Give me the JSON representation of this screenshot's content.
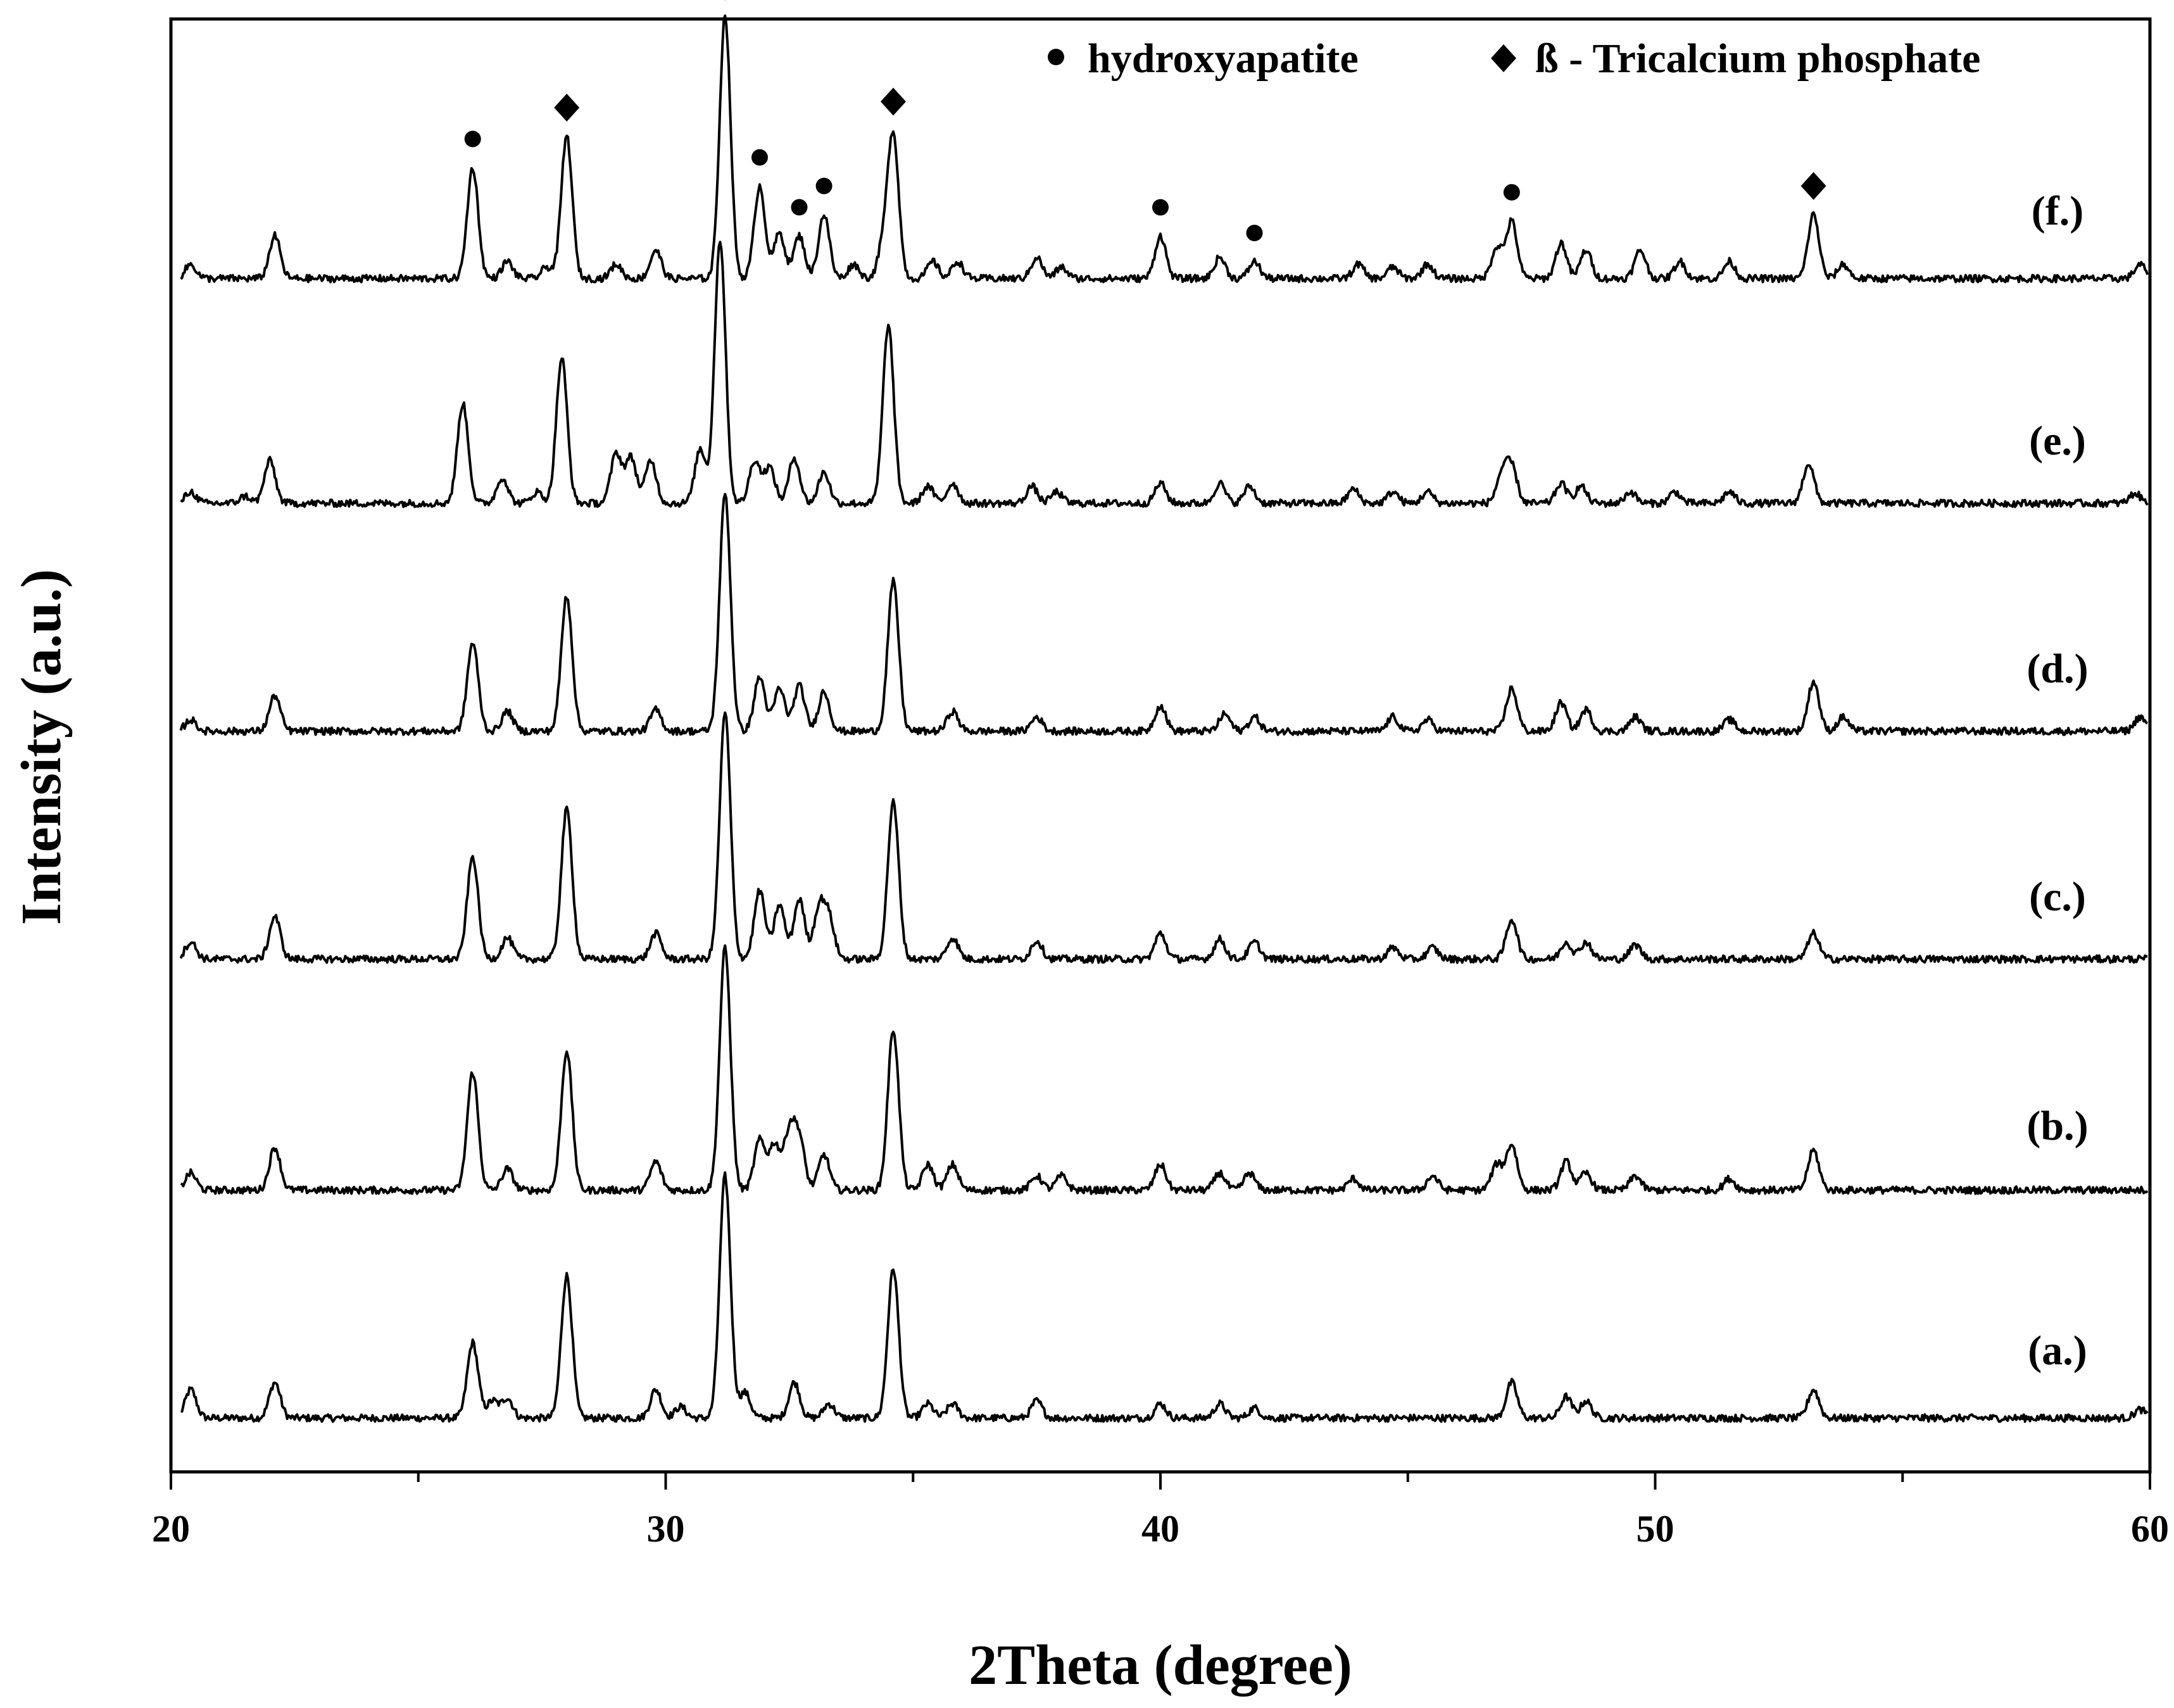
{
  "chart_data": {
    "type": "line",
    "title": "",
    "xlabel": "2Theta (degree)",
    "ylabel": "Intensity (a.u.)",
    "xlim": [
      20,
      60
    ],
    "x_ticks": [
      "20",
      "30",
      "40",
      "50",
      "60"
    ],
    "y_ticks": "none",
    "grid": false,
    "legend_position": "top-right",
    "legend": {
      "hydroxyapatite": {
        "marker": "circle",
        "label": "hydroxyapatite"
      },
      "tcp": {
        "marker": "diamond",
        "label": "ß - Tricalcium phosphate"
      }
    },
    "peak_width_deg": 0.11,
    "series": [
      {
        "label": "(a.)",
        "baseline": 0.25,
        "peaks": [
          [
            20.4,
            0.2
          ],
          [
            22.1,
            0.25
          ],
          [
            26.1,
            0.53
          ],
          [
            26.5,
            0.12
          ],
          [
            26.8,
            0.14
          ],
          [
            28.0,
            1.0
          ],
          [
            29.8,
            0.2
          ],
          [
            30.3,
            0.08
          ],
          [
            31.2,
            1.7
          ],
          [
            31.6,
            0.18
          ],
          [
            32.6,
            0.25
          ],
          [
            33.3,
            0.1
          ],
          [
            34.6,
            1.05
          ],
          [
            35.3,
            0.1
          ],
          [
            35.8,
            0.1
          ],
          [
            37.5,
            0.12
          ],
          [
            40.0,
            0.1
          ],
          [
            41.2,
            0.1
          ],
          [
            41.9,
            0.07
          ],
          [
            47.1,
            0.25
          ],
          [
            48.2,
            0.15
          ],
          [
            48.6,
            0.12
          ],
          [
            53.2,
            0.2
          ],
          [
            59.8,
            0.06
          ]
        ]
      },
      {
        "label": "(b.)",
        "baseline": 0.25,
        "peaks": [
          [
            20.4,
            0.12
          ],
          [
            22.1,
            0.3
          ],
          [
            26.1,
            0.83
          ],
          [
            26.8,
            0.15
          ],
          [
            28.0,
            0.98
          ],
          [
            29.8,
            0.2
          ],
          [
            31.2,
            1.7
          ],
          [
            31.9,
            0.35
          ],
          [
            32.2,
            0.32
          ],
          [
            32.5,
            0.4
          ],
          [
            32.7,
            0.35
          ],
          [
            33.2,
            0.25
          ],
          [
            34.6,
            1.13
          ],
          [
            35.3,
            0.18
          ],
          [
            35.8,
            0.18
          ],
          [
            37.5,
            0.1
          ],
          [
            38.0,
            0.1
          ],
          [
            40.0,
            0.18
          ],
          [
            41.2,
            0.12
          ],
          [
            41.8,
            0.12
          ],
          [
            43.9,
            0.08
          ],
          [
            45.5,
            0.1
          ],
          [
            47.1,
            0.32
          ],
          [
            46.8,
            0.18
          ],
          [
            48.2,
            0.2
          ],
          [
            48.6,
            0.12
          ],
          [
            49.6,
            0.1
          ],
          [
            51.5,
            0.08
          ],
          [
            53.2,
            0.28
          ]
        ]
      },
      {
        "label": "(c.)",
        "baseline": 0.25,
        "peaks": [
          [
            20.4,
            0.12
          ],
          [
            22.1,
            0.3
          ],
          [
            26.1,
            0.72
          ],
          [
            26.8,
            0.15
          ],
          [
            28.0,
            1.05
          ],
          [
            29.8,
            0.18
          ],
          [
            31.2,
            1.73
          ],
          [
            31.9,
            0.48
          ],
          [
            32.3,
            0.38
          ],
          [
            32.7,
            0.42
          ],
          [
            33.1,
            0.35
          ],
          [
            33.3,
            0.28
          ],
          [
            34.6,
            1.1
          ],
          [
            35.8,
            0.15
          ],
          [
            37.5,
            0.13
          ],
          [
            40.0,
            0.18
          ],
          [
            41.2,
            0.14
          ],
          [
            41.9,
            0.12
          ],
          [
            44.7,
            0.08
          ],
          [
            45.5,
            0.08
          ],
          [
            47.1,
            0.28
          ],
          [
            48.2,
            0.12
          ],
          [
            48.6,
            0.12
          ],
          [
            49.6,
            0.1
          ],
          [
            53.2,
            0.18
          ]
        ]
      },
      {
        "label": "(d.)",
        "baseline": 0.25,
        "peaks": [
          [
            20.4,
            0.08
          ],
          [
            22.1,
            0.25
          ],
          [
            26.1,
            0.62
          ],
          [
            26.8,
            0.14
          ],
          [
            28.0,
            0.95
          ],
          [
            29.8,
            0.15
          ],
          [
            31.2,
            1.67
          ],
          [
            31.9,
            0.38
          ],
          [
            32.3,
            0.3
          ],
          [
            32.7,
            0.32
          ],
          [
            33.2,
            0.28
          ],
          [
            34.6,
            1.05
          ],
          [
            35.8,
            0.14
          ],
          [
            37.5,
            0.1
          ],
          [
            40.0,
            0.18
          ],
          [
            41.3,
            0.12
          ],
          [
            41.9,
            0.1
          ],
          [
            44.7,
            0.1
          ],
          [
            45.4,
            0.08
          ],
          [
            47.1,
            0.3
          ],
          [
            48.1,
            0.2
          ],
          [
            48.6,
            0.15
          ],
          [
            49.6,
            0.1
          ],
          [
            51.5,
            0.08
          ],
          [
            53.2,
            0.35
          ],
          [
            53.8,
            0.1
          ],
          [
            59.8,
            0.1
          ]
        ]
      },
      {
        "label": "(e.)",
        "baseline": 0.25,
        "peaks": [
          [
            20.4,
            0.08
          ],
          [
            21.5,
            0.05
          ],
          [
            22.0,
            0.3
          ],
          [
            25.9,
            0.7
          ],
          [
            26.7,
            0.18
          ],
          [
            27.4,
            0.08
          ],
          [
            27.9,
            1.02
          ],
          [
            29.0,
            0.35
          ],
          [
            29.3,
            0.32
          ],
          [
            29.7,
            0.3
          ],
          [
            30.7,
            0.38
          ],
          [
            31.1,
            1.85
          ],
          [
            31.8,
            0.3
          ],
          [
            32.1,
            0.25
          ],
          [
            32.6,
            0.32
          ],
          [
            33.2,
            0.22
          ],
          [
            34.5,
            1.25
          ],
          [
            35.3,
            0.12
          ],
          [
            35.8,
            0.14
          ],
          [
            37.4,
            0.12
          ],
          [
            37.9,
            0.08
          ],
          [
            40.0,
            0.14
          ],
          [
            41.2,
            0.14
          ],
          [
            41.8,
            0.12
          ],
          [
            43.9,
            0.1
          ],
          [
            44.7,
            0.08
          ],
          [
            45.4,
            0.08
          ],
          [
            46.9,
            0.2
          ],
          [
            47.1,
            0.25
          ],
          [
            48.1,
            0.14
          ],
          [
            48.5,
            0.12
          ],
          [
            49.5,
            0.08
          ],
          [
            50.4,
            0.08
          ],
          [
            51.5,
            0.08
          ],
          [
            53.1,
            0.28
          ],
          [
            59.7,
            0.07
          ]
        ]
      },
      {
        "label": "(f.)",
        "baseline": 0.25,
        "peaks": [
          [
            20.4,
            0.1
          ],
          [
            22.1,
            0.3
          ],
          [
            26.1,
            0.78
          ],
          [
            26.8,
            0.12
          ],
          [
            27.6,
            0.08
          ],
          [
            28.0,
            1.0
          ],
          [
            29.0,
            0.1
          ],
          [
            29.8,
            0.2
          ],
          [
            31.2,
            1.85
          ],
          [
            31.9,
            0.65
          ],
          [
            32.3,
            0.32
          ],
          [
            32.7,
            0.3
          ],
          [
            33.2,
            0.45
          ],
          [
            33.8,
            0.1
          ],
          [
            34.4,
            0.22
          ],
          [
            34.6,
            1.0
          ],
          [
            35.4,
            0.12
          ],
          [
            35.9,
            0.12
          ],
          [
            37.5,
            0.15
          ],
          [
            38.0,
            0.08
          ],
          [
            40.0,
            0.3
          ],
          [
            41.2,
            0.15
          ],
          [
            41.9,
            0.12
          ],
          [
            44.0,
            0.1
          ],
          [
            44.7,
            0.08
          ],
          [
            45.4,
            0.1
          ],
          [
            46.8,
            0.22
          ],
          [
            47.1,
            0.4
          ],
          [
            48.1,
            0.25
          ],
          [
            48.6,
            0.2
          ],
          [
            49.7,
            0.2
          ],
          [
            50.5,
            0.12
          ],
          [
            51.5,
            0.12
          ],
          [
            53.2,
            0.45
          ],
          [
            53.8,
            0.1
          ],
          [
            59.8,
            0.1
          ]
        ]
      }
    ],
    "annotations": [
      {
        "series": "(f.)",
        "marker": "circle",
        "x": 26.1
      },
      {
        "series": "(f.)",
        "marker": "diamond",
        "x": 28.0
      },
      {
        "series": "(f.)",
        "marker": "diamond",
        "x": 31.2
      },
      {
        "series": "(f.)",
        "marker": "circle",
        "x": 31.9
      },
      {
        "series": "(f.)",
        "marker": "circle",
        "x": 32.7
      },
      {
        "series": "(f.)",
        "marker": "circle",
        "x": 33.2
      },
      {
        "series": "(f.)",
        "marker": "diamond",
        "x": 34.6
      },
      {
        "series": "(f.)",
        "marker": "circle",
        "x": 40.0
      },
      {
        "series": "(f.)",
        "marker": "circle",
        "x": 41.9
      },
      {
        "series": "(f.)",
        "marker": "circle",
        "x": 47.1
      },
      {
        "series": "(f.)",
        "marker": "diamond",
        "x": 53.2
      }
    ]
  }
}
